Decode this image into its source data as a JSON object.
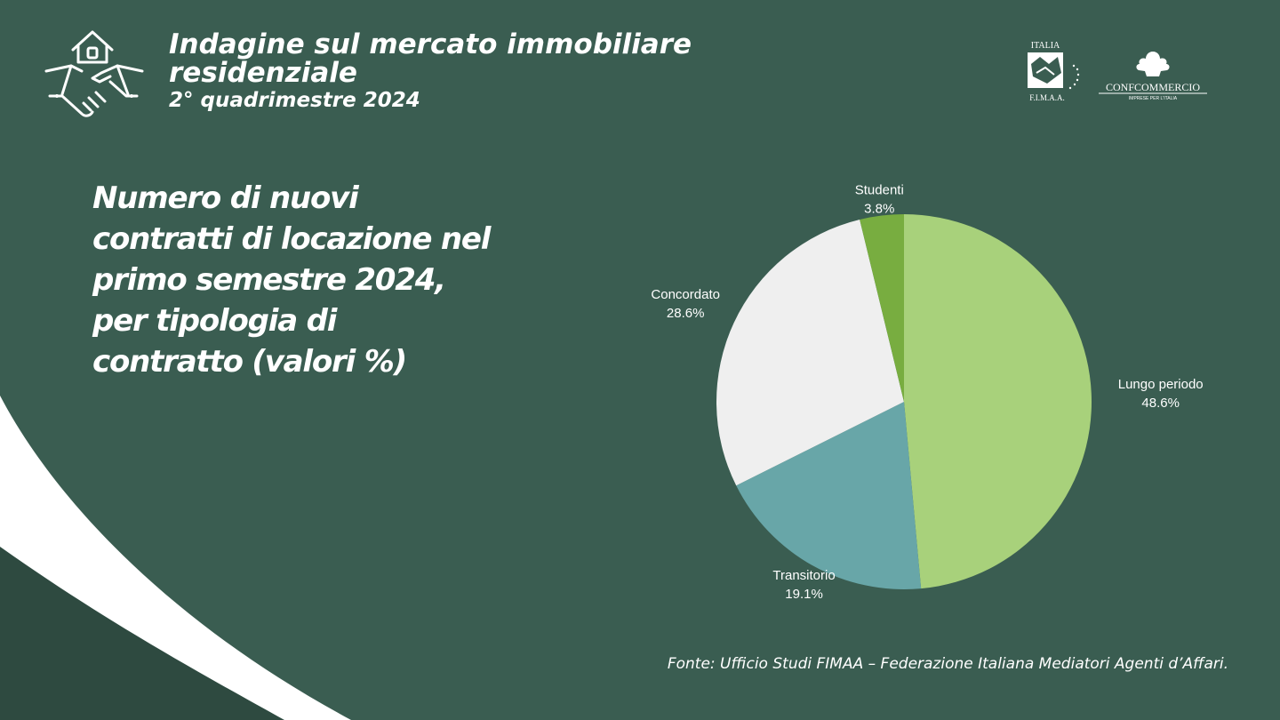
{
  "header": {
    "title": "Indagine sul mercato immobiliare residenziale",
    "subtitle": "2° quadrimestre 2024"
  },
  "logos": {
    "fimaa_top": "ITALIA",
    "fimaa_bottom": "F.I.M.A.A.",
    "confcommercio": "CONFCOMMERCIO",
    "confcommercio_sub": "IMPRESE PER L'ITALIA"
  },
  "headline": "Numero di nuovi\ncontratti di locazione nel\nprimo semestre 2024,\nper tipologia di\ncontratto (valori %)",
  "chart_data": {
    "type": "pie",
    "categories": [
      "Lungo periodo",
      "Transitorio",
      "Concordato",
      "Studenti"
    ],
    "values": [
      48.6,
      19.1,
      28.6,
      3.8
    ],
    "value_labels": [
      "48.6%",
      "19.1%",
      "28.6%",
      "3.8%"
    ],
    "colors": [
      "#a8d17b",
      "#68a6a8",
      "#efefef",
      "#78ad40"
    ],
    "start": "12 o'clock, clockwise"
  },
  "source": "Fonte: Ufficio Studi FIMAA – Federazione Italiana Mediatori Agenti d’Affari."
}
